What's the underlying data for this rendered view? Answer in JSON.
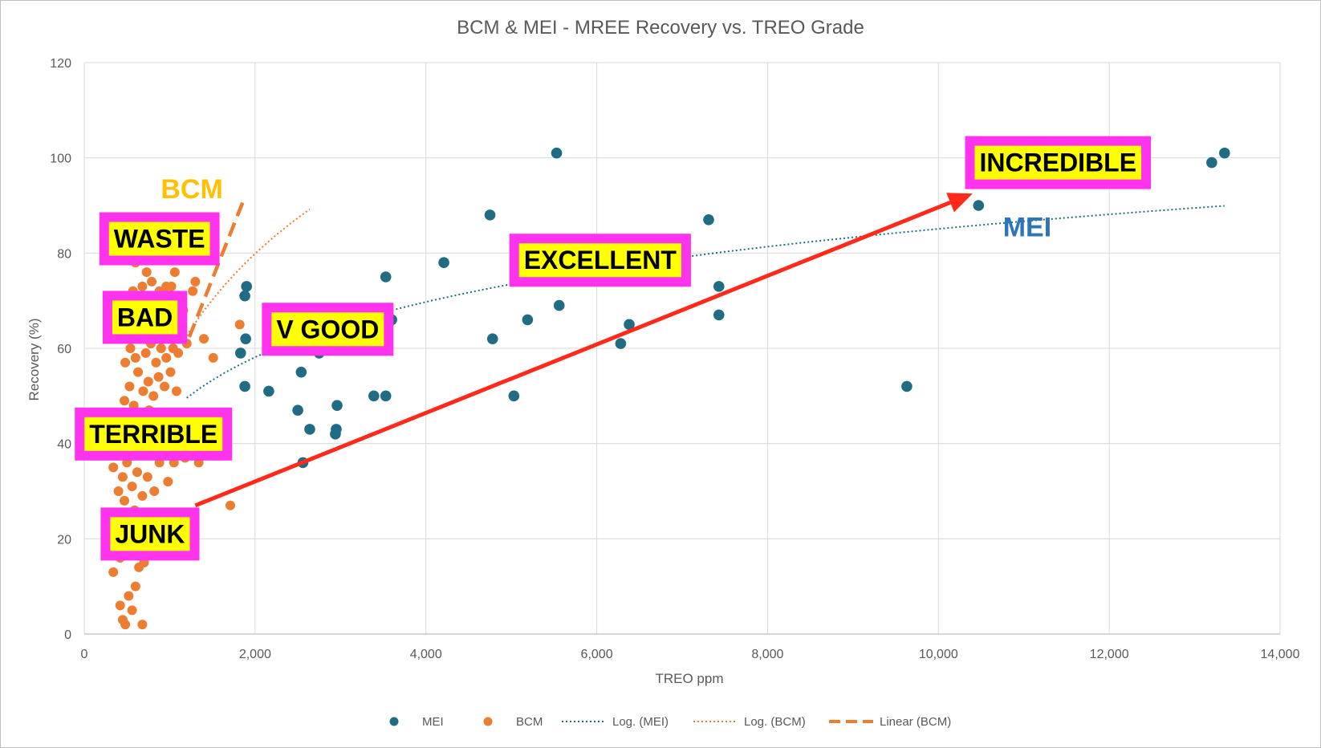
{
  "colors": {
    "mei": "#1f6c84",
    "bcm": "#ed7d31",
    "arrow": "#ff2a1a",
    "callout_border": "#ff33ee",
    "callout_fill": "#ffff00",
    "bcm_tag": "#ffc000",
    "mei_tag": "#2e75b6",
    "grid": "#d9d9d9",
    "text": "#595959"
  },
  "chart_data": {
    "type": "scatter",
    "title": "BCM & MEI - MREE Recovery vs. TREO Grade",
    "xlabel": "TREO  ppm",
    "ylabel": "Recovery (%)",
    "xlim": [
      0,
      14000
    ],
    "ylim": [
      0,
      120
    ],
    "x_ticks": [
      0,
      2000,
      4000,
      6000,
      8000,
      10000,
      12000,
      14000
    ],
    "x_tick_labels": [
      "0",
      "2,000",
      "4,000",
      "6,000",
      "8,000",
      "10,000",
      "12,000",
      "14,000"
    ],
    "y_ticks": [
      0,
      20,
      40,
      60,
      80,
      100,
      120
    ],
    "y_tick_labels": [
      "0",
      "20",
      "40",
      "60",
      "80",
      "100",
      "120"
    ],
    "grid": true,
    "legend_position": "bottom",
    "series": [
      {
        "name": "MEI",
        "kind": "scatter",
        "color": "#1f6c84",
        "points": [
          [
            1900,
            73
          ],
          [
            1880,
            71
          ],
          [
            1890,
            62
          ],
          [
            1830,
            59
          ],
          [
            1880,
            52
          ],
          [
            2160,
            51
          ],
          [
            2500,
            47
          ],
          [
            2540,
            55
          ],
          [
            2640,
            43
          ],
          [
            2560,
            36
          ],
          [
            2940,
            42
          ],
          [
            2950,
            43
          ],
          [
            2960,
            48
          ],
          [
            2750,
            59
          ],
          [
            3390,
            50
          ],
          [
            3530,
            50
          ],
          [
            3530,
            75
          ],
          [
            3600,
            66
          ],
          [
            4210,
            78
          ],
          [
            4750,
            88
          ],
          [
            4780,
            62
          ],
          [
            5030,
            50
          ],
          [
            5190,
            66
          ],
          [
            5530,
            101
          ],
          [
            5560,
            69
          ],
          [
            6280,
            61
          ],
          [
            6380,
            65
          ],
          [
            7310,
            87
          ],
          [
            7430,
            73
          ],
          [
            7430,
            67
          ],
          [
            9630,
            52
          ],
          [
            10470,
            90
          ],
          [
            13200,
            99
          ],
          [
            13350,
            101
          ]
        ]
      },
      {
        "name": "BCM",
        "kind": "scatter",
        "color": "#ed7d31",
        "points": [
          [
            340,
            13
          ],
          [
            380,
            20
          ],
          [
            420,
            6
          ],
          [
            450,
            3
          ],
          [
            480,
            2
          ],
          [
            520,
            8
          ],
          [
            560,
            5
          ],
          [
            600,
            10
          ],
          [
            640,
            14
          ],
          [
            680,
            2
          ],
          [
            420,
            16
          ],
          [
            500,
            18
          ],
          [
            560,
            17
          ],
          [
            620,
            19
          ],
          [
            700,
            15
          ],
          [
            360,
            25
          ],
          [
            430,
            22
          ],
          [
            470,
            28
          ],
          [
            520,
            24
          ],
          [
            590,
            26
          ],
          [
            650,
            23
          ],
          [
            720,
            21
          ],
          [
            800,
            18
          ],
          [
            340,
            35
          ],
          [
            400,
            30
          ],
          [
            450,
            33
          ],
          [
            500,
            36
          ],
          [
            560,
            31
          ],
          [
            620,
            34
          ],
          [
            680,
            29
          ],
          [
            740,
            33
          ],
          [
            820,
            30
          ],
          [
            880,
            36
          ],
          [
            980,
            32
          ],
          [
            1050,
            36
          ],
          [
            1180,
            37
          ],
          [
            1340,
            36
          ],
          [
            1710,
            27
          ],
          [
            400,
            41
          ],
          [
            460,
            44
          ],
          [
            520,
            42
          ],
          [
            580,
            46
          ],
          [
            640,
            40
          ],
          [
            700,
            43
          ],
          [
            760,
            47
          ],
          [
            820,
            45
          ],
          [
            470,
            49
          ],
          [
            530,
            52
          ],
          [
            580,
            48
          ],
          [
            630,
            55
          ],
          [
            690,
            51
          ],
          [
            750,
            53
          ],
          [
            810,
            50
          ],
          [
            870,
            54
          ],
          [
            940,
            52
          ],
          [
            1010,
            55
          ],
          [
            1080,
            51
          ],
          [
            480,
            57
          ],
          [
            540,
            60
          ],
          [
            600,
            58
          ],
          [
            660,
            62
          ],
          [
            720,
            59
          ],
          [
            780,
            61
          ],
          [
            840,
            57
          ],
          [
            900,
            60
          ],
          [
            960,
            58
          ],
          [
            1040,
            60
          ],
          [
            1100,
            59
          ],
          [
            1200,
            61
          ],
          [
            1400,
            62
          ],
          [
            1510,
            58
          ],
          [
            1820,
            65
          ],
          [
            540,
            64
          ],
          [
            600,
            67
          ],
          [
            660,
            65
          ],
          [
            720,
            68
          ],
          [
            780,
            66
          ],
          [
            840,
            70
          ],
          [
            900,
            67
          ],
          [
            960,
            69
          ],
          [
            1000,
            71
          ],
          [
            1080,
            70
          ],
          [
            1160,
            68
          ],
          [
            570,
            72
          ],
          [
            680,
            73
          ],
          [
            790,
            74
          ],
          [
            880,
            72
          ],
          [
            960,
            73
          ],
          [
            1020,
            73
          ],
          [
            1270,
            72
          ],
          [
            1300,
            74
          ],
          [
            600,
            78
          ],
          [
            730,
            76
          ],
          [
            1060,
            76
          ]
        ]
      },
      {
        "name": "Log. (MEI)",
        "kind": "trendline",
        "style": "dotted",
        "color": "#1f6c84",
        "x_range": [
          1200,
          13350
        ],
        "fit": "log",
        "coefficients": {
          "a": 16.74,
          "b": -69.1
        }
      },
      {
        "name": "Log. (BCM)",
        "kind": "trendline",
        "style": "dotted",
        "color": "#ed7d31",
        "x_range": [
          1150,
          2640
        ],
        "fit": "log",
        "coefficients": {
          "a": 33.65,
          "b": -175.9
        }
      },
      {
        "name": "Linear (BCM)",
        "kind": "trendline",
        "style": "dashed",
        "color": "#ed7d31",
        "x_range": [
          1230,
          1880
        ],
        "fit": "linear",
        "coefficients": {
          "m": 0.0452,
          "c": 6.8
        }
      }
    ],
    "legend": [
      {
        "label": "MEI",
        "kind": "marker",
        "color": "#1f6c84"
      },
      {
        "label": "BCM",
        "kind": "marker",
        "color": "#ed7d31"
      },
      {
        "label": "Log. (MEI)",
        "kind": "dotted",
        "color": "#1f6c84"
      },
      {
        "label": "Log. (BCM)",
        "kind": "dotted",
        "color": "#ed7d31"
      },
      {
        "label": "Linear (BCM)",
        "kind": "dashed",
        "color": "#ed7d31"
      }
    ],
    "annotations": {
      "series_tags": [
        {
          "text": "BCM",
          "x": 1260,
          "y": 93.5,
          "color": "#ffc000"
        },
        {
          "text": "MEI",
          "x": 11040,
          "y": 85.5,
          "color": "#2e75b6"
        }
      ],
      "callouts": [
        {
          "text": "WASTE",
          "x": 880,
          "y": 83
        },
        {
          "text": "BAD",
          "x": 710,
          "y": 66.5
        },
        {
          "text": "V GOOD",
          "x": 2850,
          "y": 64
        },
        {
          "text": "EXCELLENT",
          "x": 6040,
          "y": 78.5
        },
        {
          "text": "TERRIBLE",
          "x": 810,
          "y": 42
        },
        {
          "text": "JUNK",
          "x": 770,
          "y": 21
        },
        {
          "text": "INCREDIBLE",
          "x": 11400,
          "y": 99
        }
      ],
      "arrow": {
        "from": [
          1300,
          27
        ],
        "to": [
          10400,
          92.5
        ]
      }
    }
  }
}
